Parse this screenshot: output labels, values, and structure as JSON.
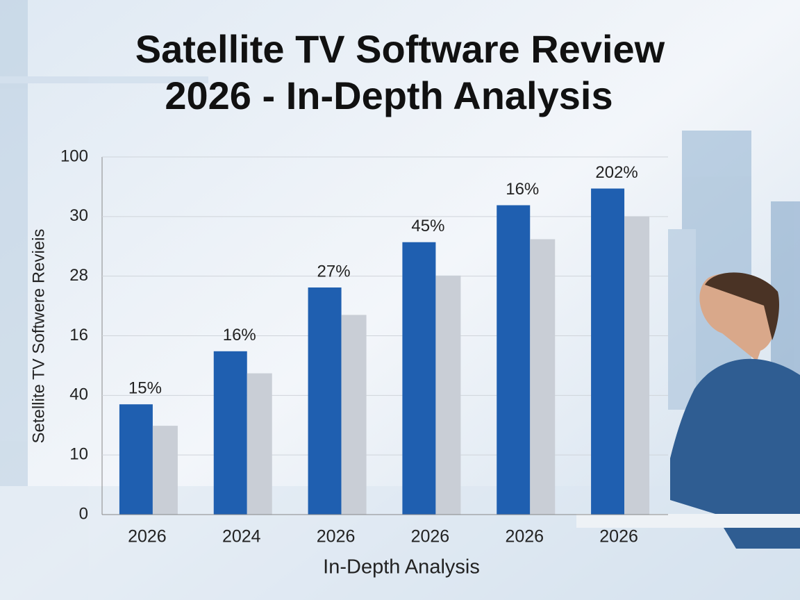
{
  "chart_data": {
    "type": "bar",
    "title": [
      "Satellite TV Software Review",
      "2026 - In-Depth Analysis"
    ],
    "x_label": "In-Depth Analysis",
    "y_label": "Setellite TV Softwere Revieis",
    "categories": [
      "2026",
      "2024",
      "2026",
      "2026",
      "2026",
      "2026"
    ],
    "series": [
      {
        "color": "#1f5fb0",
        "values": [
          1.85,
          2.74,
          3.81,
          4.57,
          5.19,
          5.47
        ]
      },
      {
        "color": "#c9ced6",
        "values": [
          1.49,
          2.37,
          3.35,
          4.01,
          4.62,
          5.0
        ]
      }
    ],
    "annotations": [
      "15%",
      "16%",
      "27%",
      "45%",
      "16%",
      "202%"
    ],
    "ylim": [
      0,
      6
    ],
    "yticks": [
      {
        "value": 0,
        "label": "0"
      },
      {
        "value": 1,
        "label": "10"
      },
      {
        "value": 2,
        "label": "40"
      },
      {
        "value": 3,
        "label": "16"
      },
      {
        "value": 4,
        "label": "28"
      },
      {
        "value": 5,
        "label": "30"
      },
      {
        "value": 6,
        "label": "100"
      }
    ],
    "grid": true
  }
}
